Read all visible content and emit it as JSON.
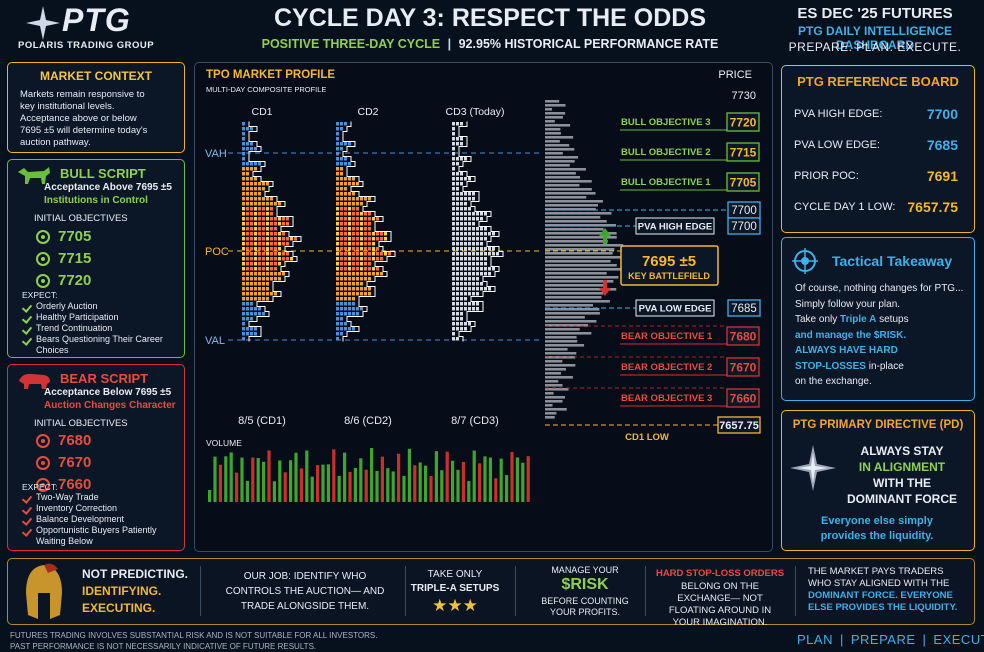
{
  "header": {
    "logo": "PTG",
    "logo_subtitle": "POLARIS TRADING GROUP",
    "title": "CYCLE DAY 3: RESPECT THE ODDS",
    "subtitle_cycle": "POSITIVE THREE-DAY CYCLE",
    "subtitle_separator": "|",
    "subtitle_rate": "92.95% HISTORICAL PERFORMANCE RATE",
    "contract": "ES DEC '25 FUTURES",
    "dashboard": "PTG DAILY INTELLIGENCE DASHBOARD",
    "motto": "PREPARE. PLAN. EXECUTE."
  },
  "market_context": {
    "title": "MARKET CONTEXT",
    "text": "Markets remain responsive to key institutional levels. Acceptance above or below 7695 ±5 will determine today's auction pathway."
  },
  "bull_script": {
    "title": "BULL SCRIPT",
    "condition": "Acceptance Above 7695 ±5",
    "meaning": "Institutions in Control",
    "objectives_title": "INITIAL OBJECTIVES",
    "objectives": [
      7705,
      7715,
      7720
    ],
    "expect_title": "EXPECT:",
    "expect": [
      "Orderly Auction",
      "Healthy Participation",
      "Trend Continuation",
      "Bears Questioning Their Career Choices"
    ]
  },
  "bear_script": {
    "title": "BEAR SCRIPT",
    "condition": "Acceptance Below 7695 ±5",
    "meaning": "Auction Changes Character",
    "objectives_title": "INITIAL OBJECTIVES",
    "objectives": [
      7680,
      7670,
      7660
    ],
    "expect_title": "EXPECT:",
    "expect": [
      "Two-Way Trade",
      "Inventory Correction",
      "Balance Development",
      "Opportunistic Buyers Patiently Waiting Below"
    ]
  },
  "tpo": {
    "title": "TPO MARKET PROFILE",
    "subtitle": "MULTI-DAY COMPOSITE PROFILE",
    "price_title": "PRICE",
    "top_price": 7730,
    "vah": "VAH",
    "poc": "POC",
    "val": "VAL",
    "sessions": [
      {
        "name": "CD1",
        "date": "8/5 (CD1)"
      },
      {
        "name": "CD2",
        "date": "8/6 (CD2)"
      },
      {
        "name": "CD3 (Today)",
        "date": "8/7 (CD3)"
      }
    ],
    "volume_title": "VOLUME"
  },
  "levels": [
    {
      "label": "BULL OBJECTIVE 3",
      "value": 7720
    },
    {
      "label": "BULL OBJECTIVE 2",
      "value": 7715
    },
    {
      "label": "BULL OBJECTIVE 1",
      "value": 7705
    },
    {
      "value": 7700
    },
    {
      "label": "PVA HIGH EDGE",
      "value": 7700
    },
    {
      "label": "PVA LOW EDGE",
      "value": 7685
    },
    {
      "label": "BEAR OBJECTIVE 1",
      "value": 7680
    },
    {
      "label": "BEAR OBJECTIVE 2",
      "value": 7670
    },
    {
      "label": "BEAR OBJECTIVE 3",
      "value": 7660
    },
    {
      "label": "CD1 LOW",
      "value": 7657.75
    }
  ],
  "battlefield": {
    "value": "7695 ±5",
    "label": "KEY BATTLEFIELD"
  },
  "reference_board": {
    "title": "PTG REFERENCE BOARD",
    "rows": [
      {
        "label": "PVA HIGH EDGE:",
        "value": 7700
      },
      {
        "label": "PVA LOW EDGE:",
        "value": 7685
      },
      {
        "label": "PRIOR POC:",
        "value": 7691
      },
      {
        "label": "CYCLE DAY 1 LOW:",
        "value": 7657.75
      }
    ]
  },
  "tactical_takeaway": {
    "title": "Tactical Takeaway",
    "lines": [
      [
        "Of course, nothing changes for PTG..."
      ],
      [
        "Simply follow your plan."
      ],
      [
        "Take only ",
        "Triple A",
        " setups"
      ],
      [
        "and manage the $RISK."
      ],
      [
        "ALWAYS HAVE HARD"
      ],
      [
        "STOP-LOSSES",
        " in-place"
      ],
      [
        "on the exchange."
      ]
    ]
  },
  "directive": {
    "title": "PTG PRIMARY DIRECTIVE (PD)",
    "lines": [
      "ALWAYS STAY",
      "IN ALIGNMENT",
      "WITH THE",
      "DOMINANT FORCE"
    ],
    "closing": "Everyone else simply provides the liquidity."
  },
  "footer": {
    "pillars": [
      "NOT PREDICTING.",
      "IDENTIFYING.",
      "EXECUTING."
    ],
    "job": "OUR JOB: IDENTIFY WHO CONTROLS THE AUCTION— AND TRADE ALONGSIDE THEM.",
    "setups_lead": "TAKE ONLY",
    "setups": "TRIPLE-A SETUPS",
    "stars": "★★★",
    "risk_lead": "MANAGE YOUR",
    "risk": "$RISK",
    "risk_tail": "BEFORE COUNTING YOUR PROFITS.",
    "stops_lead": "HARD STOP-LOSS ORDERS",
    "stops_tail": "BELONG ON THE EXCHANGE— NOT FLOATING AROUND IN YOUR IMAGINATION.",
    "market_lead": "THE MARKET PAYS TRADERS WHO STAY ALIGNED WITH THE",
    "market_force": "DOMINANT FORCE.",
    "market_tail": "EVERYONE ELSE PROVIDES THE LIQUIDITY."
  },
  "disclaimer": [
    "FUTURES TRADING INVOLVES SUBSTANTIAL RISK AND IS NOT SUITABLE FOR ALL INVESTORS.",
    "PAST PERFORMANCE IS NOT NECESSARILY INDICATIVE OF FUTURE RESULTS."
  ],
  "nav": {
    "items": [
      "PLAN",
      "PREPARE",
      "EXECUTE"
    ],
    "separator": "|"
  }
}
